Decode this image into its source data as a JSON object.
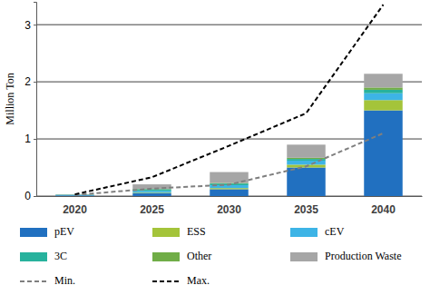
{
  "chart_data": {
    "type": "bar",
    "stacked": true,
    "grid": true,
    "legend": "bottom",
    "y_label": "Million Ton",
    "categories": [
      "2020",
      "2025",
      "2030",
      "2035",
      "2040"
    ],
    "ylim": [
      0,
      3.4
    ],
    "yticks": [
      0,
      1,
      2,
      3
    ],
    "series": [
      {
        "name": "pEV",
        "color": "#2170c0",
        "values": [
          0.01,
          0.05,
          0.12,
          0.5,
          1.5
        ]
      },
      {
        "name": "ESS",
        "color": "#a4c43a",
        "values": [
          0,
          0.01,
          0.02,
          0.05,
          0.18
        ]
      },
      {
        "name": "cEV",
        "color": "#3db4e6",
        "values": [
          0.005,
          0.03,
          0.05,
          0.07,
          0.12
        ]
      },
      {
        "name": "3C",
        "color": "#27b29d",
        "values": [
          0.01,
          0.03,
          0.03,
          0.03,
          0.06
        ]
      },
      {
        "name": "Other",
        "color": "#70ad47",
        "values": [
          0,
          0.005,
          0.01,
          0.02,
          0.04
        ]
      },
      {
        "name": "Production Waste",
        "color": "#a6a6a6",
        "values": [
          0.005,
          0.08,
          0.19,
          0.23,
          0.24
        ]
      },
      {
        "name": "Min.",
        "type": "line",
        "line_style": "dashed",
        "color": "#7f7f7f",
        "values": [
          0.02,
          0.13,
          0.2,
          0.52,
          1.1
        ]
      },
      {
        "name": "Max.",
        "type": "line",
        "line_style": "dashed",
        "color": "#000000",
        "values": [
          0.03,
          0.33,
          0.88,
          1.45,
          3.35
        ]
      }
    ]
  }
}
